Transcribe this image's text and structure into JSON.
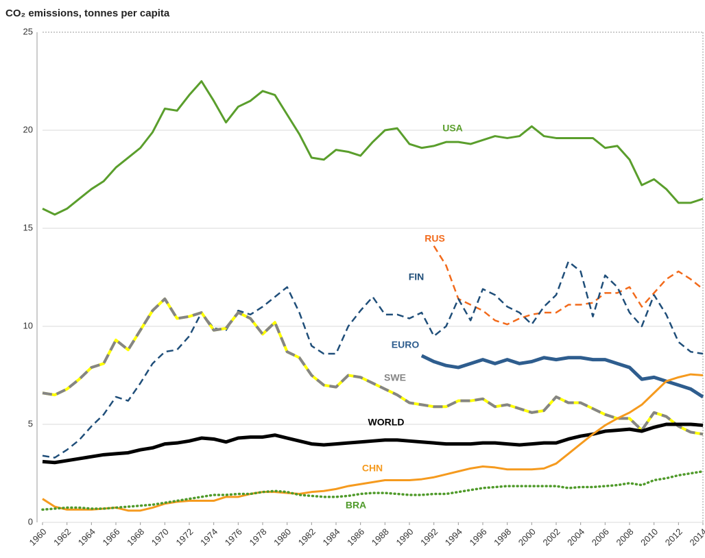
{
  "chart_data": {
    "type": "line",
    "title": "CO₂ emissions, tonnes per capita",
    "x": [
      1960,
      1961,
      1962,
      1963,
      1964,
      1965,
      1966,
      1967,
      1968,
      1969,
      1970,
      1971,
      1972,
      1973,
      1974,
      1975,
      1976,
      1977,
      1978,
      1979,
      1980,
      1981,
      1982,
      1983,
      1984,
      1985,
      1986,
      1987,
      1988,
      1989,
      1990,
      1991,
      1992,
      1993,
      1994,
      1995,
      1996,
      1997,
      1998,
      1999,
      2000,
      2001,
      2002,
      2003,
      2004,
      2005,
      2006,
      2007,
      2008,
      2009,
      2010,
      2011,
      2012,
      2013,
      2014
    ],
    "xlim": [
      1960,
      2014
    ],
    "xticks": [
      1960,
      1962,
      1964,
      1966,
      1968,
      1970,
      1972,
      1974,
      1976,
      1978,
      1980,
      1982,
      1984,
      1986,
      1988,
      1990,
      1992,
      1994,
      1996,
      1998,
      2000,
      2002,
      2004,
      2006,
      2008,
      2010,
      2012,
      2014
    ],
    "ylim": [
      0,
      25
    ],
    "yticks": [
      0,
      5,
      10,
      15,
      20,
      25
    ],
    "grid": true,
    "series": [
      {
        "name": "USA",
        "color": "#5a9e2c",
        "style": "solid",
        "values": [
          16.0,
          15.7,
          16.0,
          16.5,
          17.0,
          17.4,
          18.1,
          18.6,
          19.1,
          19.9,
          21.1,
          21.0,
          21.8,
          22.5,
          21.5,
          20.4,
          21.2,
          21.5,
          22.0,
          21.8,
          20.8,
          19.8,
          18.6,
          18.5,
          19.0,
          18.9,
          18.7,
          19.4,
          20.0,
          20.1,
          19.3,
          19.1,
          19.2,
          19.4,
          19.4,
          19.3,
          19.5,
          19.7,
          19.6,
          19.7,
          20.2,
          19.7,
          19.6,
          19.6,
          19.6,
          19.6,
          19.1,
          19.2,
          18.5,
          17.2,
          17.5,
          17.0,
          16.3,
          16.3,
          16.5
        ]
      },
      {
        "name": "RUS",
        "color": "#f26a1b",
        "style": "dashed",
        "values": [
          null,
          null,
          null,
          null,
          null,
          null,
          null,
          null,
          null,
          null,
          null,
          null,
          null,
          null,
          null,
          null,
          null,
          null,
          null,
          null,
          null,
          null,
          null,
          null,
          null,
          null,
          null,
          null,
          null,
          null,
          null,
          null,
          14.1,
          13.1,
          11.4,
          11.1,
          10.8,
          10.3,
          10.1,
          10.4,
          10.6,
          10.7,
          10.7,
          11.1,
          11.1,
          11.2,
          11.7,
          11.7,
          12.0,
          11.0,
          11.7,
          12.4,
          12.8,
          12.4,
          11.9
        ]
      },
      {
        "name": "FIN",
        "color": "#1f4e79",
        "style": "dashed",
        "values": [
          3.4,
          3.3,
          3.7,
          4.2,
          4.9,
          5.5,
          6.4,
          6.2,
          7.1,
          8.1,
          8.7,
          8.8,
          9.5,
          10.7,
          9.9,
          9.8,
          10.8,
          10.6,
          11.0,
          11.5,
          12.0,
          10.7,
          9.0,
          8.6,
          8.6,
          10.0,
          10.8,
          11.5,
          10.6,
          10.6,
          10.4,
          10.7,
          9.5,
          10.0,
          11.4,
          10.3,
          11.9,
          11.6,
          11.0,
          10.7,
          10.1,
          11.0,
          11.6,
          13.3,
          12.8,
          10.5,
          12.6,
          12.0,
          10.7,
          10.0,
          11.6,
          10.6,
          9.2,
          8.7,
          8.6
        ]
      },
      {
        "name": "EURO",
        "color": "#2e5d8e",
        "style": "thick",
        "values": [
          null,
          null,
          null,
          null,
          null,
          null,
          null,
          null,
          null,
          null,
          null,
          null,
          null,
          null,
          null,
          null,
          null,
          null,
          null,
          null,
          null,
          null,
          null,
          null,
          null,
          null,
          null,
          null,
          null,
          null,
          null,
          8.5,
          8.2,
          8.0,
          7.9,
          8.1,
          8.3,
          8.1,
          8.3,
          8.1,
          8.2,
          8.4,
          8.3,
          8.4,
          8.4,
          8.3,
          8.3,
          8.1,
          7.9,
          7.3,
          7.4,
          7.2,
          7.0,
          6.8,
          6.4
        ]
      },
      {
        "name": "SWE",
        "color": "#858585",
        "underlay_color": "#ffff00",
        "style": "dashed-thick",
        "values": [
          6.6,
          6.5,
          6.8,
          7.3,
          7.9,
          8.1,
          9.3,
          8.8,
          9.8,
          10.8,
          11.4,
          10.4,
          10.5,
          10.7,
          9.8,
          9.9,
          10.7,
          10.4,
          9.6,
          10.2,
          8.7,
          8.4,
          7.5,
          7.0,
          6.9,
          7.5,
          7.4,
          7.1,
          6.8,
          6.5,
          6.1,
          6.0,
          5.9,
          5.9,
          6.2,
          6.2,
          6.3,
          5.9,
          6.0,
          5.8,
          5.6,
          5.7,
          6.4,
          6.1,
          6.1,
          5.8,
          5.5,
          5.3,
          5.3,
          4.7,
          5.6,
          5.4,
          4.9,
          4.6,
          4.5
        ]
      },
      {
        "name": "WORLD",
        "color": "#000000",
        "style": "thick",
        "values": [
          3.1,
          3.05,
          3.15,
          3.25,
          3.35,
          3.45,
          3.5,
          3.55,
          3.7,
          3.8,
          4.0,
          4.05,
          4.15,
          4.3,
          4.25,
          4.1,
          4.3,
          4.35,
          4.35,
          4.45,
          4.3,
          4.15,
          4.0,
          3.95,
          4.0,
          4.05,
          4.1,
          4.15,
          4.2,
          4.2,
          4.15,
          4.1,
          4.05,
          4.0,
          4.0,
          4.0,
          4.05,
          4.05,
          4.0,
          3.95,
          4.0,
          4.05,
          4.05,
          4.25,
          4.4,
          4.5,
          4.65,
          4.7,
          4.75,
          4.65,
          4.85,
          5.0,
          5.0,
          5.0,
          4.95
        ]
      },
      {
        "name": "CHN",
        "color": "#f59a1e",
        "style": "solid",
        "values": [
          1.2,
          0.8,
          0.65,
          0.65,
          0.65,
          0.7,
          0.75,
          0.6,
          0.6,
          0.75,
          0.95,
          1.05,
          1.1,
          1.1,
          1.1,
          1.3,
          1.3,
          1.45,
          1.55,
          1.55,
          1.5,
          1.45,
          1.55,
          1.6,
          1.7,
          1.85,
          1.95,
          2.05,
          2.15,
          2.15,
          2.15,
          2.2,
          2.3,
          2.45,
          2.6,
          2.75,
          2.85,
          2.8,
          2.7,
          2.7,
          2.7,
          2.75,
          3.0,
          3.5,
          4.0,
          4.5,
          4.95,
          5.3,
          5.6,
          6.0,
          6.6,
          7.2,
          7.4,
          7.55,
          7.5
        ]
      },
      {
        "name": "BRA",
        "color": "#4f9a2a",
        "style": "dotted",
        "values": [
          0.65,
          0.7,
          0.75,
          0.75,
          0.7,
          0.7,
          0.75,
          0.8,
          0.85,
          0.9,
          1.0,
          1.1,
          1.2,
          1.3,
          1.4,
          1.4,
          1.45,
          1.45,
          1.55,
          1.6,
          1.55,
          1.4,
          1.35,
          1.3,
          1.3,
          1.35,
          1.45,
          1.5,
          1.5,
          1.45,
          1.4,
          1.4,
          1.45,
          1.45,
          1.55,
          1.65,
          1.75,
          1.8,
          1.85,
          1.85,
          1.85,
          1.85,
          1.85,
          1.75,
          1.8,
          1.8,
          1.85,
          1.9,
          2.0,
          1.9,
          2.15,
          2.25,
          2.4,
          2.5,
          2.6
        ]
      }
    ]
  }
}
